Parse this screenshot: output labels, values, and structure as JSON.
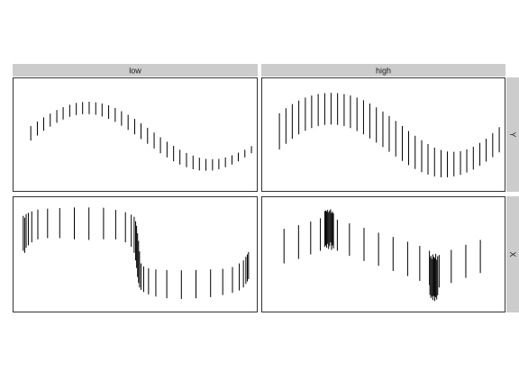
{
  "chart_data": {
    "type": "segment",
    "title": "",
    "xlabel": "",
    "ylabel": "",
    "grid": false,
    "legend": "none",
    "colors": {
      "strip": "#cccccc",
      "panel_border": "#333333",
      "segment": "#000000",
      "background": "#ffffff"
    },
    "facet_columns": [
      "low",
      "high"
    ],
    "facet_rows": [
      "Y",
      "X"
    ],
    "panels": [
      {
        "column": "low",
        "row": "Y",
        "xlim": [
          0,
          1
        ],
        "ylim": [
          -1.9,
          1.9
        ],
        "segments": [
          {
            "x": 0.071,
            "y0": -0.2,
            "y1": 0.29
          },
          {
            "x": 0.098,
            "y0": -0.03,
            "y1": 0.44
          },
          {
            "x": 0.124,
            "y0": 0.13,
            "y1": 0.58
          },
          {
            "x": 0.151,
            "y0": 0.27,
            "y1": 0.71
          },
          {
            "x": 0.178,
            "y0": 0.4,
            "y1": 0.83
          },
          {
            "x": 0.204,
            "y0": 0.51,
            "y1": 0.93
          },
          {
            "x": 0.231,
            "y0": 0.6,
            "y1": 1.01
          },
          {
            "x": 0.258,
            "y0": 0.66,
            "y1": 1.07
          },
          {
            "x": 0.284,
            "y0": 0.69,
            "y1": 1.1
          },
          {
            "x": 0.311,
            "y0": 0.69,
            "y1": 1.11
          },
          {
            "x": 0.338,
            "y0": 0.67,
            "y1": 1.09
          },
          {
            "x": 0.364,
            "y0": 0.61,
            "y1": 1.05
          },
          {
            "x": 0.391,
            "y0": 0.53,
            "y1": 0.99
          },
          {
            "x": 0.418,
            "y0": 0.43,
            "y1": 0.9
          },
          {
            "x": 0.444,
            "y0": 0.3,
            "y1": 0.79
          },
          {
            "x": 0.471,
            "y0": 0.16,
            "y1": 0.67
          },
          {
            "x": 0.498,
            "y0": 0.01,
            "y1": 0.53
          },
          {
            "x": 0.524,
            "y0": -0.15,
            "y1": 0.38
          },
          {
            "x": 0.551,
            "y0": -0.31,
            "y1": 0.23
          },
          {
            "x": 0.578,
            "y0": -0.47,
            "y1": 0.07
          },
          {
            "x": 0.604,
            "y0": -0.63,
            "y1": -0.09
          },
          {
            "x": 0.631,
            "y0": -0.77,
            "y1": -0.24
          },
          {
            "x": 0.658,
            "y0": -0.9,
            "y1": -0.38
          },
          {
            "x": 0.684,
            "y0": -1.01,
            "y1": -0.51
          },
          {
            "x": 0.711,
            "y0": -1.1,
            "y1": -0.62
          },
          {
            "x": 0.738,
            "y0": -1.17,
            "y1": -0.71
          },
          {
            "x": 0.764,
            "y0": -1.21,
            "y1": -0.78
          },
          {
            "x": 0.791,
            "y0": -1.22,
            "y1": -0.82
          },
          {
            "x": 0.818,
            "y0": -1.21,
            "y1": -0.83
          },
          {
            "x": 0.844,
            "y0": -1.17,
            "y1": -0.82
          },
          {
            "x": 0.871,
            "y0": -1.1,
            "y1": -0.77
          },
          {
            "x": 0.898,
            "y0": -1.01,
            "y1": -0.7
          },
          {
            "x": 0.924,
            "y0": -0.9,
            "y1": -0.61
          },
          {
            "x": 0.951,
            "y0": -0.77,
            "y1": -0.51
          },
          {
            "x": 0.978,
            "y0": -0.63,
            "y1": -0.39
          }
        ]
      },
      {
        "column": "high",
        "row": "Y",
        "xlim": [
          0,
          1
        ],
        "ylim": [
          -1.9,
          1.9
        ],
        "segments": [
          {
            "x": 0.071,
            "y0": -0.5,
            "y1": 0.72
          },
          {
            "x": 0.098,
            "y0": -0.31,
            "y1": 0.89
          },
          {
            "x": 0.124,
            "y0": -0.14,
            "y1": 1.03
          },
          {
            "x": 0.151,
            "y0": 0.01,
            "y1": 1.15
          },
          {
            "x": 0.178,
            "y0": 0.13,
            "y1": 1.25
          },
          {
            "x": 0.204,
            "y0": 0.22,
            "y1": 1.32
          },
          {
            "x": 0.231,
            "y0": 0.29,
            "y1": 1.37
          },
          {
            "x": 0.258,
            "y0": 0.33,
            "y1": 1.4
          },
          {
            "x": 0.284,
            "y0": 0.34,
            "y1": 1.41
          },
          {
            "x": 0.311,
            "y0": 0.33,
            "y1": 1.4
          },
          {
            "x": 0.338,
            "y0": 0.29,
            "y1": 1.37
          },
          {
            "x": 0.364,
            "y0": 0.22,
            "y1": 1.32
          },
          {
            "x": 0.391,
            "y0": 0.12,
            "y1": 1.25
          },
          {
            "x": 0.418,
            "y0": 0.01,
            "y1": 1.16
          },
          {
            "x": 0.444,
            "y0": -0.13,
            "y1": 1.05
          },
          {
            "x": 0.471,
            "y0": -0.27,
            "y1": 0.92
          },
          {
            "x": 0.498,
            "y0": -0.42,
            "y1": 0.78
          },
          {
            "x": 0.524,
            "y0": -0.58,
            "y1": 0.63
          },
          {
            "x": 0.551,
            "y0": -0.74,
            "y1": 0.46
          },
          {
            "x": 0.578,
            "y0": -0.89,
            "y1": 0.29
          },
          {
            "x": 0.604,
            "y0": -1.03,
            "y1": 0.12
          },
          {
            "x": 0.631,
            "y0": -1.16,
            "y1": -0.04
          },
          {
            "x": 0.658,
            "y0": -1.27,
            "y1": -0.19
          },
          {
            "x": 0.684,
            "y0": -1.35,
            "y1": -0.32
          },
          {
            "x": 0.711,
            "y0": -1.41,
            "y1": -0.44
          },
          {
            "x": 0.738,
            "y0": -1.44,
            "y1": -0.52
          },
          {
            "x": 0.764,
            "y0": -1.44,
            "y1": -0.57
          },
          {
            "x": 0.791,
            "y0": -1.41,
            "y1": -0.58
          },
          {
            "x": 0.818,
            "y0": -1.36,
            "y1": -0.56
          },
          {
            "x": 0.844,
            "y0": -1.28,
            "y1": -0.5
          },
          {
            "x": 0.871,
            "y0": -1.18,
            "y1": -0.41
          },
          {
            "x": 0.898,
            "y0": -1.05,
            "y1": -0.28
          },
          {
            "x": 0.924,
            "y0": -0.91,
            "y1": -0.14
          },
          {
            "x": 0.951,
            "y0": -0.76,
            "y1": 0.05
          },
          {
            "x": 0.978,
            "y0": -0.6,
            "y1": 0.25
          }
        ]
      },
      {
        "column": "low",
        "row": "X",
        "xlim": [
          0,
          1
        ],
        "ylim": [
          -1.9,
          1.9
        ],
        "segments": [
          {
            "x": 0.04,
            "y0": 0.12,
            "y1": 1.28
          },
          {
            "x": 0.046,
            "y0": 0.05,
            "y1": 1.22
          },
          {
            "x": 0.052,
            "y0": 0.22,
            "y1": 1.34
          },
          {
            "x": 0.061,
            "y0": 0.3,
            "y1": 1.38
          },
          {
            "x": 0.075,
            "y0": 0.4,
            "y1": 1.43
          },
          {
            "x": 0.1,
            "y0": 0.5,
            "y1": 1.49
          },
          {
            "x": 0.14,
            "y0": 0.54,
            "y1": 1.52
          },
          {
            "x": 0.19,
            "y0": 0.54,
            "y1": 1.54
          },
          {
            "x": 0.25,
            "y0": 0.5,
            "y1": 1.56
          },
          {
            "x": 0.31,
            "y0": 0.48,
            "y1": 1.56
          },
          {
            "x": 0.37,
            "y0": 0.5,
            "y1": 1.55
          },
          {
            "x": 0.42,
            "y0": 0.5,
            "y1": 1.48
          },
          {
            "x": 0.46,
            "y0": 0.4,
            "y1": 1.4
          },
          {
            "x": 0.484,
            "y0": 0.25,
            "y1": 1.32
          },
          {
            "x": 0.496,
            "y0": 0.05,
            "y1": 1.25
          },
          {
            "x": 0.502,
            "y0": -0.2,
            "y1": 1.1
          },
          {
            "x": 0.506,
            "y0": -0.45,
            "y1": 0.95
          },
          {
            "x": 0.51,
            "y0": -0.75,
            "y1": 0.7
          },
          {
            "x": 0.514,
            "y0": -0.95,
            "y1": 0.45
          },
          {
            "x": 0.518,
            "y0": -1.1,
            "y1": 0.1
          },
          {
            "x": 0.524,
            "y0": -1.18,
            "y1": -0.3
          },
          {
            "x": 0.535,
            "y0": -1.25,
            "y1": -0.4
          },
          {
            "x": 0.555,
            "y0": -1.33,
            "y1": -0.46
          },
          {
            "x": 0.585,
            "y0": -1.4,
            "y1": -0.5
          },
          {
            "x": 0.63,
            "y0": -1.46,
            "y1": -0.52
          },
          {
            "x": 0.69,
            "y0": -1.48,
            "y1": -0.53
          },
          {
            "x": 0.75,
            "y0": -1.46,
            "y1": -0.52
          },
          {
            "x": 0.81,
            "y0": -1.42,
            "y1": -0.5
          },
          {
            "x": 0.86,
            "y0": -1.35,
            "y1": -0.48
          },
          {
            "x": 0.9,
            "y0": -1.28,
            "y1": -0.42
          },
          {
            "x": 0.928,
            "y0": -1.2,
            "y1": -0.3
          },
          {
            "x": 0.945,
            "y0": -1.1,
            "y1": -0.2
          },
          {
            "x": 0.955,
            "y0": -0.98,
            "y1": -0.08
          },
          {
            "x": 0.961,
            "y0": -0.9,
            "y1": 0.0
          },
          {
            "x": 0.966,
            "y0": -0.82,
            "y1": 0.08
          }
        ]
      },
      {
        "column": "high",
        "row": "X",
        "xlim": [
          0,
          1
        ],
        "ylim": [
          -1.9,
          1.9
        ],
        "segments": [
          {
            "x": 0.09,
            "y0": -0.3,
            "y1": 0.85
          },
          {
            "x": 0.15,
            "y0": -0.15,
            "y1": 0.97
          },
          {
            "x": 0.2,
            "y0": 0.0,
            "y1": 1.09
          },
          {
            "x": 0.24,
            "y0": 0.12,
            "y1": 1.2
          },
          {
            "x": 0.258,
            "y0": 0.25,
            "y1": 1.44
          },
          {
            "x": 0.262,
            "y0": 0.3,
            "y1": 1.46
          },
          {
            "x": 0.266,
            "y0": 0.22,
            "y1": 1.43
          },
          {
            "x": 0.27,
            "y0": 0.35,
            "y1": 1.48
          },
          {
            "x": 0.274,
            "y0": 0.18,
            "y1": 1.4
          },
          {
            "x": 0.278,
            "y0": 0.28,
            "y1": 1.45
          },
          {
            "x": 0.282,
            "y0": 0.4,
            "y1": 1.5
          },
          {
            "x": 0.286,
            "y0": 0.15,
            "y1": 1.38
          },
          {
            "x": 0.29,
            "y0": 0.3,
            "y1": 1.42
          },
          {
            "x": 0.294,
            "y0": 0.2,
            "y1": 1.36
          },
          {
            "x": 0.31,
            "y0": 0.12,
            "y1": 1.15
          },
          {
            "x": 0.36,
            "y0": -0.05,
            "y1": 1.03
          },
          {
            "x": 0.42,
            "y0": -0.22,
            "y1": 0.88
          },
          {
            "x": 0.48,
            "y0": -0.38,
            "y1": 0.72
          },
          {
            "x": 0.54,
            "y0": -0.55,
            "y1": 0.58
          },
          {
            "x": 0.6,
            "y0": -0.72,
            "y1": 0.42
          },
          {
            "x": 0.65,
            "y0": -0.88,
            "y1": 0.28
          },
          {
            "x": 0.69,
            "y0": -1.02,
            "y1": 0.12
          },
          {
            "x": 0.692,
            "y0": -1.35,
            "y1": -0.1
          },
          {
            "x": 0.696,
            "y0": -1.45,
            "y1": -0.05
          },
          {
            "x": 0.7,
            "y0": -1.4,
            "y1": -0.15
          },
          {
            "x": 0.704,
            "y0": -1.52,
            "y1": 0.0
          },
          {
            "x": 0.708,
            "y0": -1.38,
            "y1": -0.08
          },
          {
            "x": 0.712,
            "y0": -1.55,
            "y1": -0.12
          },
          {
            "x": 0.716,
            "y0": -1.42,
            "y1": 0.02
          },
          {
            "x": 0.72,
            "y0": -1.5,
            "y1": -0.18
          },
          {
            "x": 0.724,
            "y0": -1.36,
            "y1": -0.06
          },
          {
            "x": 0.73,
            "y0": -1.1,
            "y1": -0.02
          },
          {
            "x": 0.78,
            "y0": -0.95,
            "y1": 0.15
          },
          {
            "x": 0.84,
            "y0": -0.78,
            "y1": 0.32
          },
          {
            "x": 0.9,
            "y0": -0.62,
            "y1": 0.48
          }
        ]
      }
    ]
  }
}
